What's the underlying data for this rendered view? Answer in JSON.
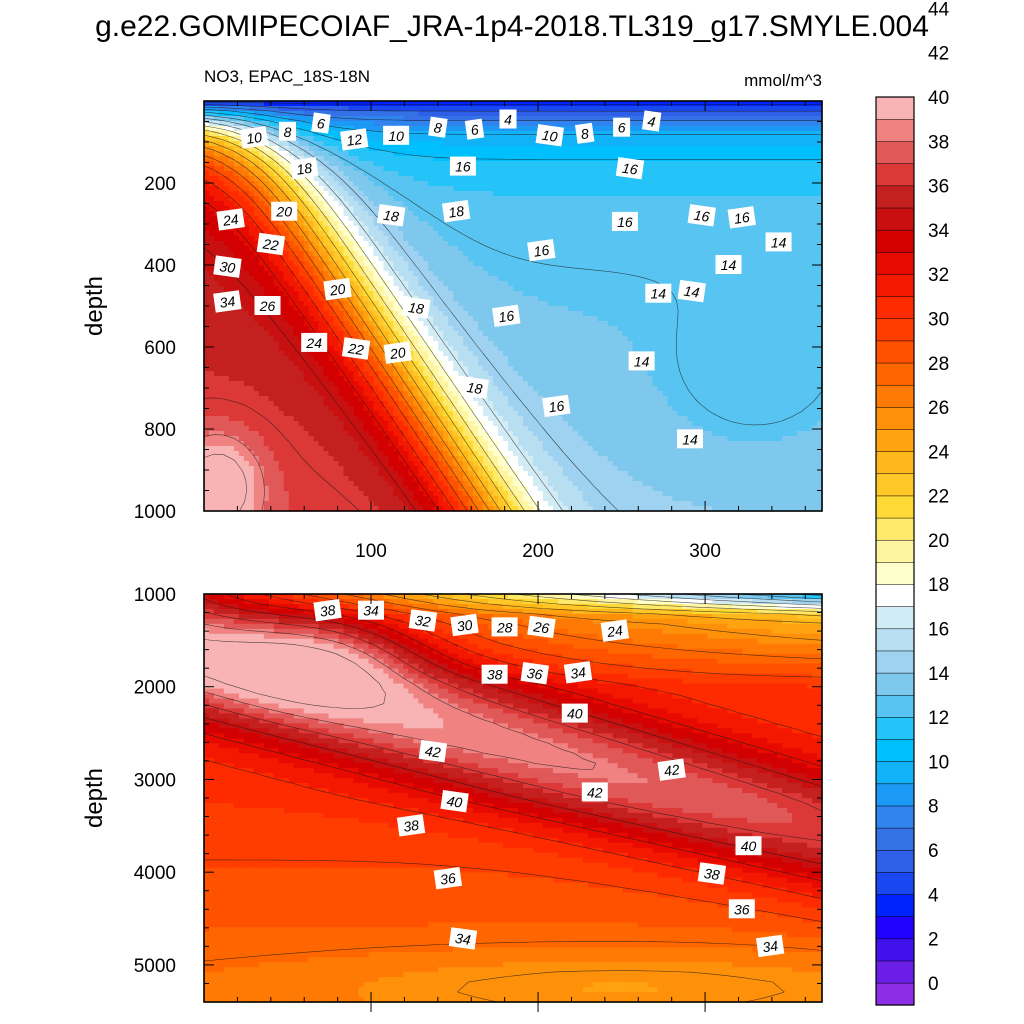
{
  "figure": {
    "title": "g.e22.GOMIPECOIAF_JRA-1p4-2018.TL319_g17.SMYLE.004",
    "variable_label": "NO3, EPAC_18S-18N",
    "units_label": "mmol/m^3"
  },
  "colors": {
    "level_colors": [
      "#8c2ee6",
      "#6a1ee6",
      "#4010ee",
      "#2000ff",
      "#0022ff",
      "#1a48f0",
      "#2e5fe8",
      "#3470e6",
      "#2f84ee",
      "#1c99f4",
      "#12b2f8",
      "#00bfff",
      "#25c4f8",
      "#58c4f2",
      "#7ec8ee",
      "#9ed2f0",
      "#b8def2",
      "#d2ecf5",
      "#ffffff",
      "#ffffcc",
      "#fff4a0",
      "#ffe96a",
      "#ffd936",
      "#ffc828",
      "#ffb81c",
      "#ffa310",
      "#ff900a",
      "#ff7a05",
      "#ff6600",
      "#ff5100",
      "#ff3d00",
      "#ff2b00",
      "#f41800",
      "#e60a00",
      "#d20000",
      "#c81010",
      "#c42020",
      "#dc3838",
      "#e05858",
      "#f08282",
      "#f8b4b4"
    ]
  },
  "chart_data": [
    {
      "type": "contour",
      "panel": "upper",
      "title": "NO3, EPAC_18S-18N",
      "units": "mmol/m^3",
      "xlabel": "",
      "ylabel": "depth",
      "xlim": [
        0,
        370
      ],
      "ylim": [
        1000,
        0
      ],
      "x_ticks": [
        "100",
        "200",
        "300"
      ],
      "y_ticks": [
        "200",
        "400",
        "600",
        "800",
        "1000"
      ],
      "contour_labels": [
        {
          "v": "10",
          "x": 30,
          "y": 90
        },
        {
          "v": "8",
          "x": 50,
          "y": 75
        },
        {
          "v": "6",
          "x": 70,
          "y": 55
        },
        {
          "v": "12",
          "x": 90,
          "y": 95
        },
        {
          "v": "10",
          "x": 115,
          "y": 85
        },
        {
          "v": "8",
          "x": 140,
          "y": 65
        },
        {
          "v": "6",
          "x": 162,
          "y": 70
        },
        {
          "v": "4",
          "x": 182,
          "y": 45
        },
        {
          "v": "10",
          "x": 207,
          "y": 85
        },
        {
          "v": "8",
          "x": 228,
          "y": 80
        },
        {
          "v": "6",
          "x": 250,
          "y": 65
        },
        {
          "v": "4",
          "x": 268,
          "y": 50
        },
        {
          "v": "18",
          "x": 60,
          "y": 165
        },
        {
          "v": "16",
          "x": 155,
          "y": 160
        },
        {
          "v": "16",
          "x": 255,
          "y": 165
        },
        {
          "v": "24",
          "x": 16,
          "y": 290
        },
        {
          "v": "20",
          "x": 48,
          "y": 270
        },
        {
          "v": "18",
          "x": 112,
          "y": 280
        },
        {
          "v": "18",
          "x": 151,
          "y": 270
        },
        {
          "v": "16",
          "x": 252,
          "y": 295
        },
        {
          "v": "16",
          "x": 298,
          "y": 280
        },
        {
          "v": "16",
          "x": 322,
          "y": 285
        },
        {
          "v": "14",
          "x": 344,
          "y": 345
        },
        {
          "v": "22",
          "x": 40,
          "y": 350
        },
        {
          "v": "16",
          "x": 202,
          "y": 365
        },
        {
          "v": "14",
          "x": 314,
          "y": 400
        },
        {
          "v": "30",
          "x": 14,
          "y": 405
        },
        {
          "v": "20",
          "x": 80,
          "y": 460
        },
        {
          "v": "14",
          "x": 272,
          "y": 470
        },
        {
          "v": "14",
          "x": 292,
          "y": 465
        },
        {
          "v": "34",
          "x": 14,
          "y": 490
        },
        {
          "v": "26",
          "x": 38,
          "y": 500
        },
        {
          "v": "18",
          "x": 127,
          "y": 505
        },
        {
          "v": "16",
          "x": 181,
          "y": 525
        },
        {
          "v": "24",
          "x": 66,
          "y": 590
        },
        {
          "v": "22",
          "x": 91,
          "y": 605
        },
        {
          "v": "20",
          "x": 116,
          "y": 615
        },
        {
          "v": "14",
          "x": 262,
          "y": 635
        },
        {
          "v": "18",
          "x": 162,
          "y": 700
        },
        {
          "v": "16",
          "x": 211,
          "y": 745
        },
        {
          "v": "14",
          "x": 291,
          "y": 825
        }
      ]
    },
    {
      "type": "contour",
      "panel": "lower",
      "title": "",
      "units": "mmol/m^3",
      "xlabel": "",
      "ylabel": "depth",
      "xlim": [
        0,
        370
      ],
      "ylim": [
        5400,
        1000
      ],
      "x_ticks": [],
      "y_ticks": [
        "1000",
        "2000",
        "3000",
        "4000",
        "5000"
      ],
      "contour_labels": [
        {
          "v": "38",
          "x": 74,
          "y": 1180
        },
        {
          "v": "34",
          "x": 100,
          "y": 1180
        },
        {
          "v": "32",
          "x": 131,
          "y": 1290
        },
        {
          "v": "30",
          "x": 156,
          "y": 1340
        },
        {
          "v": "28",
          "x": 180,
          "y": 1360
        },
        {
          "v": "26",
          "x": 202,
          "y": 1360
        },
        {
          "v": "24",
          "x": 246,
          "y": 1400
        },
        {
          "v": "38",
          "x": 174,
          "y": 1870
        },
        {
          "v": "36",
          "x": 198,
          "y": 1860
        },
        {
          "v": "34",
          "x": 224,
          "y": 1850
        },
        {
          "v": "40",
          "x": 222,
          "y": 2290
        },
        {
          "v": "42",
          "x": 137,
          "y": 2700
        },
        {
          "v": "42",
          "x": 280,
          "y": 2900
        },
        {
          "v": "42",
          "x": 234,
          "y": 3140
        },
        {
          "v": "40",
          "x": 150,
          "y": 3240
        },
        {
          "v": "38",
          "x": 124,
          "y": 3500
        },
        {
          "v": "40",
          "x": 326,
          "y": 3720
        },
        {
          "v": "38",
          "x": 304,
          "y": 4020
        },
        {
          "v": "36",
          "x": 146,
          "y": 4070
        },
        {
          "v": "36",
          "x": 322,
          "y": 4400
        },
        {
          "v": "34",
          "x": 155,
          "y": 4720
        },
        {
          "v": "34",
          "x": 339,
          "y": 4800
        }
      ]
    }
  ],
  "colorbar": {
    "labels": [
      "0",
      "2",
      "4",
      "6",
      "8",
      "10",
      "12",
      "14",
      "16",
      "18",
      "20",
      "22",
      "24",
      "26",
      "28",
      "30",
      "32",
      "34",
      "36",
      "38",
      "40",
      "42",
      "44"
    ]
  }
}
